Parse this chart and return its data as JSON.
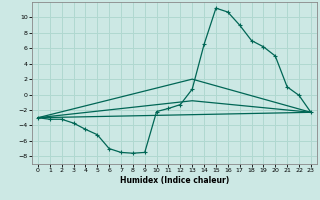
{
  "xlabel": "Humidex (Indice chaleur)",
  "ylabel": "",
  "background_color": "#cce8e4",
  "grid_color": "#b0d8d0",
  "line_color": "#006655",
  "xlim": [
    -0.5,
    23.5
  ],
  "ylim": [
    -9,
    12
  ],
  "xticks": [
    0,
    1,
    2,
    3,
    4,
    5,
    6,
    7,
    8,
    9,
    10,
    11,
    12,
    13,
    14,
    15,
    16,
    17,
    18,
    19,
    20,
    21,
    22,
    23
  ],
  "yticks": [
    -8,
    -6,
    -4,
    -2,
    0,
    2,
    4,
    6,
    8,
    10
  ],
  "series1_x": [
    0,
    1,
    2,
    3,
    4,
    5,
    6,
    7,
    8,
    9,
    10,
    11,
    12,
    13,
    14,
    15,
    16,
    17,
    18,
    19,
    20,
    21,
    22,
    23
  ],
  "series1_y": [
    -3.0,
    -3.2,
    -3.2,
    -3.7,
    -4.5,
    -5.2,
    -7.0,
    -7.5,
    -7.6,
    -7.5,
    -2.2,
    -1.8,
    -1.3,
    0.7,
    6.5,
    11.2,
    10.7,
    9.0,
    7.0,
    6.2,
    5.0,
    1.0,
    -0.1,
    -2.3
  ],
  "series2_x": [
    0,
    23
  ],
  "series2_y": [
    -3.0,
    -2.3
  ],
  "series3_x": [
    0,
    13,
    23
  ],
  "series3_y": [
    -3.0,
    -0.8,
    -2.3
  ],
  "series4_x": [
    0,
    13,
    23
  ],
  "series4_y": [
    -3.0,
    2.0,
    -2.3
  ]
}
